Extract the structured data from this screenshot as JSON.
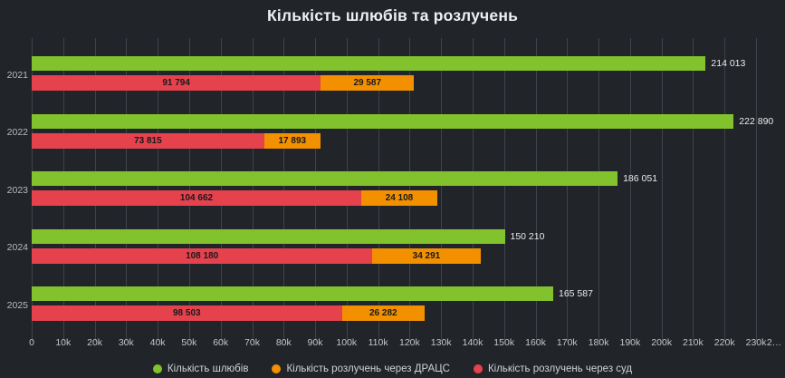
{
  "chart_data": {
    "type": "bar",
    "orientation": "horizontal",
    "title": "Кількість шлюбів та розлучень",
    "categories": [
      "2021",
      "2022",
      "2023",
      "2024",
      "2025"
    ],
    "series": [
      {
        "name": "Кількість шлюбів",
        "color": "#82c22d",
        "stack": null,
        "values": [
          214013,
          222890,
          186051,
          150210,
          165587
        ],
        "labels": [
          "214 013",
          "222 890",
          "186 051",
          "150 210",
          "165 587"
        ],
        "label_position": "outside-right"
      },
      {
        "name": "Кількість розлучень через суд",
        "color": "#e5424d",
        "stack": "divorces",
        "values": [
          91794,
          73815,
          104662,
          108180,
          98503
        ],
        "labels": [
          "91 794",
          "73 815",
          "104 662",
          "108 180",
          "98 503"
        ],
        "label_position": "inside-center"
      },
      {
        "name": "Кількість розлучень через ДРАЦС",
        "color": "#f29000",
        "stack": "divorces",
        "values": [
          29587,
          17893,
          24108,
          34291,
          26282
        ],
        "labels": [
          "29 587",
          "17 893",
          "24 108",
          "34 291",
          "26 282"
        ],
        "label_position": "inside-center"
      }
    ],
    "legend": [
      {
        "label": "Кількість шлюбів",
        "color": "#82c22d"
      },
      {
        "label": "Кількість розлучень через ДРАЦС",
        "color": "#f29000"
      },
      {
        "label": "Кількість розлучень через суд",
        "color": "#e5424d"
      }
    ],
    "legend_position": "bottom",
    "grid": "vertical",
    "xlim": [
      0,
      239200
    ],
    "x_ticks": [
      {
        "value": 0,
        "label": "0"
      },
      {
        "value": 10000,
        "label": "10k"
      },
      {
        "value": 20000,
        "label": "20k"
      },
      {
        "value": 30000,
        "label": "30k"
      },
      {
        "value": 40000,
        "label": "40k"
      },
      {
        "value": 50000,
        "label": "50k"
      },
      {
        "value": 60000,
        "label": "60k"
      },
      {
        "value": 70000,
        "label": "70k"
      },
      {
        "value": 80000,
        "label": "80k"
      },
      {
        "value": 90000,
        "label": "90k"
      },
      {
        "value": 100000,
        "label": "100k"
      },
      {
        "value": 110000,
        "label": "110k"
      },
      {
        "value": 120000,
        "label": "120k"
      },
      {
        "value": 130000,
        "label": "130k"
      },
      {
        "value": 140000,
        "label": "140k"
      },
      {
        "value": 150000,
        "label": "150k"
      },
      {
        "value": 160000,
        "label": "160k"
      },
      {
        "value": 170000,
        "label": "170k"
      },
      {
        "value": 180000,
        "label": "180k"
      },
      {
        "value": 190000,
        "label": "190k"
      },
      {
        "value": 200000,
        "label": "200k"
      },
      {
        "value": 210000,
        "label": "210k"
      },
      {
        "value": 220000,
        "label": "220k"
      },
      {
        "value": 230000,
        "label": "230k"
      },
      {
        "value": 240000,
        "label": "2…"
      }
    ],
    "colors": {
      "background": "#212529",
      "gridline": "#3e434a",
      "tick_text": "#c2c5c9",
      "category_text": "#b7babd",
      "bar_outside_label": "#e9ebed",
      "bar_inside_label": "#17191c",
      "title_text": "#eef0f2"
    }
  }
}
